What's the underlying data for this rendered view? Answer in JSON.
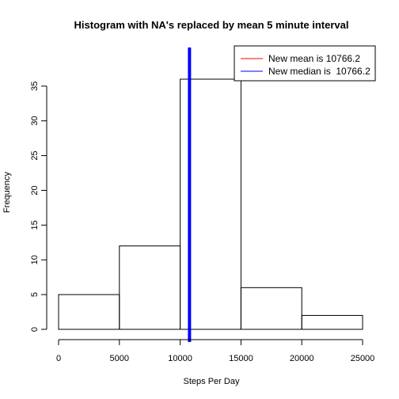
{
  "chart_data": {
    "type": "histogram",
    "title": "Histogram with NA's replaced by mean 5 minute interval",
    "xlabel": "Steps Per Day",
    "ylabel": "Frequency",
    "bins": [
      {
        "start": 0,
        "end": 5000,
        "count": 5
      },
      {
        "start": 5000,
        "end": 10000,
        "count": 12
      },
      {
        "start": 10000,
        "end": 15000,
        "count": 36
      },
      {
        "start": 15000,
        "end": 20000,
        "count": 6
      },
      {
        "start": 20000,
        "end": 25000,
        "count": 2
      }
    ],
    "xlim": [
      0,
      25000
    ],
    "ylim": [
      0,
      36
    ],
    "x_ticks": [
      0,
      5000,
      10000,
      15000,
      20000,
      25000
    ],
    "y_ticks": [
      0,
      5,
      10,
      15,
      20,
      25,
      30,
      35
    ],
    "reference_lines": [
      {
        "label": "New mean is 10766.2",
        "x": 10766.2,
        "color": "#ff0000"
      },
      {
        "label": "New median is  10766.2",
        "x": 10766.2,
        "color": "#0000ff"
      }
    ],
    "legend_position": "top-right",
    "grid": false
  }
}
